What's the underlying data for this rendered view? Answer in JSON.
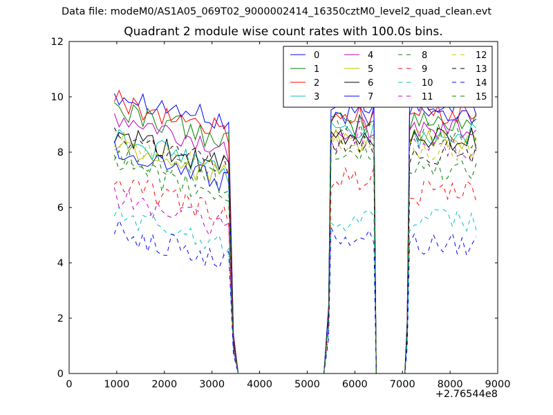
{
  "chart_data": {
    "type": "line",
    "suptitle": "Data file: modeM0/AS1A05_069T02_9000002414_16350cztM0_level2_quad_clean.evt",
    "title": "Quadrant 2 module wise count rates with 100.0s bins.",
    "xlabel": "",
    "ylabel": "",
    "x_offset_label": "+2.76544e8",
    "xlim": [
      0,
      9000
    ],
    "ylim": [
      0,
      12
    ],
    "xticks": [
      "0",
      "1000",
      "2000",
      "3000",
      "4000",
      "5000",
      "6000",
      "7000",
      "8000",
      "9000"
    ],
    "yticks": [
      "0",
      "2",
      "4",
      "6",
      "8",
      "10",
      "12"
    ],
    "legend_position": "top-right",
    "segments": [
      {
        "x_start": 950,
        "x_end": 3350,
        "step": 100
      },
      {
        "x_start": 5500,
        "x_end": 6400,
        "step": 100
      },
      {
        "x_start": 7150,
        "x_end": 8550,
        "step": 100
      }
    ],
    "gap_x": [
      3550,
      3650,
      3750,
      3850,
      3950,
      4050,
      4150,
      4250,
      4350,
      4450,
      4550,
      4650,
      4750,
      4850,
      4950,
      5050,
      5150,
      5250,
      5350,
      6450,
      6550,
      6650,
      6750,
      6850,
      6950,
      7050
    ],
    "series": [
      {
        "name": "0",
        "color": "#0000ff",
        "dash": "solid",
        "levels": [
          9.6,
          9.3,
          9.7
        ]
      },
      {
        "name": "1",
        "color": "#008000",
        "dash": "solid",
        "levels": [
          9.0,
          9.0,
          9.1
        ]
      },
      {
        "name": "2",
        "color": "#ff0000",
        "dash": "solid",
        "levels": [
          9.3,
          9.3,
          9.4
        ]
      },
      {
        "name": "3",
        "color": "#00bfbf",
        "dash": "solid",
        "levels": [
          7.9,
          8.7,
          8.6
        ]
      },
      {
        "name": "4",
        "color": "#bf00bf",
        "dash": "solid",
        "levels": [
          8.6,
          8.9,
          8.8
        ]
      },
      {
        "name": "5",
        "color": "#bfbf00",
        "dash": "solid",
        "levels": [
          7.7,
          8.4,
          8.4
        ]
      },
      {
        "name": "6",
        "color": "#000000",
        "dash": "solid",
        "levels": [
          8.0,
          8.5,
          8.5
        ]
      },
      {
        "name": "7",
        "color": "#0000ff",
        "dash": "solid",
        "levels": [
          7.5,
          9.8,
          9.5
        ]
      },
      {
        "name": "8",
        "color": "#008000",
        "dash": "dashed",
        "levels": [
          6.9,
          7.9,
          7.4
        ]
      },
      {
        "name": "9",
        "color": "#ff0000",
        "dash": "dashed",
        "levels": [
          6.3,
          7.0,
          6.5
        ]
      },
      {
        "name": "10",
        "color": "#00bfbf",
        "dash": "dashed",
        "levels": [
          5.2,
          5.6,
          5.5
        ]
      },
      {
        "name": "11",
        "color": "#bf00bf",
        "dash": "dashed",
        "levels": [
          5.8,
          8.5,
          8.2
        ]
      },
      {
        "name": "12",
        "color": "#bfbf00",
        "dash": "dashed",
        "levels": [
          7.8,
          8.3,
          8.1
        ]
      },
      {
        "name": "13",
        "color": "#000000",
        "dash": "dashed",
        "levels": [
          8.1,
          8.2,
          8.0
        ]
      },
      {
        "name": "14",
        "color": "#0000ff",
        "dash": "dashed",
        "levels": [
          4.6,
          5.0,
          4.7
        ]
      },
      {
        "name": "15",
        "color": "#008000",
        "dash": "dashed",
        "levels": [
          7.4,
          8.9,
          8.6
        ]
      }
    ]
  }
}
